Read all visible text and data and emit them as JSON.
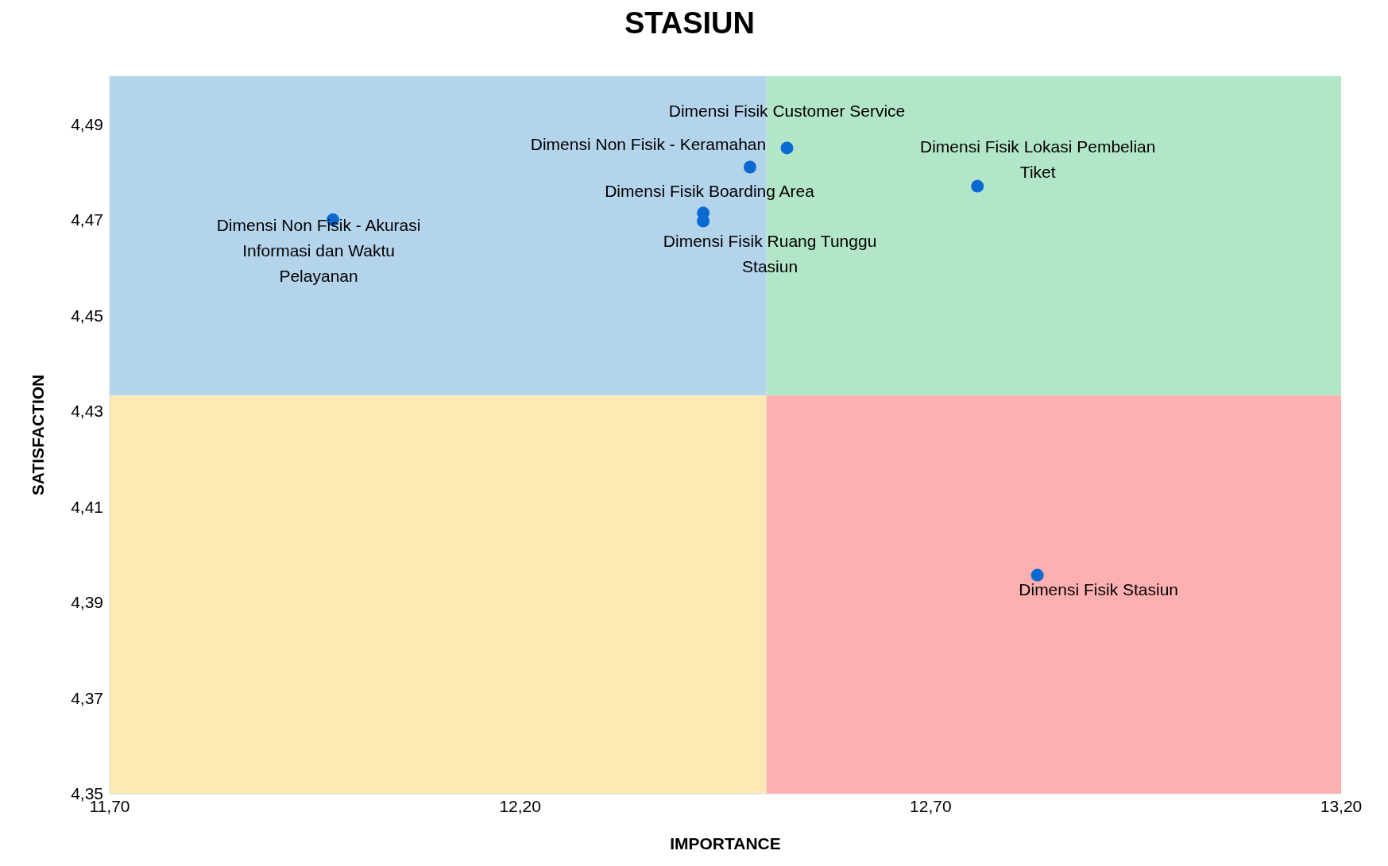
{
  "chart_data": {
    "type": "scatter",
    "title": "STASIUN",
    "xlabel": "IMPORTANCE",
    "ylabel": "SATISFACTION",
    "xlim": [
      11.7,
      13.2
    ],
    "ylim": [
      4.35,
      4.5
    ],
    "xticks": [
      {
        "value": 11.7,
        "label": "11,70"
      },
      {
        "value": 12.2,
        "label": "12,20"
      },
      {
        "value": 12.7,
        "label": "12,70"
      },
      {
        "value": 13.2,
        "label": "13,20"
      }
    ],
    "yticks": [
      {
        "value": 4.35,
        "label": "4,35"
      },
      {
        "value": 4.37,
        "label": "4,37"
      },
      {
        "value": 4.39,
        "label": "4,39"
      },
      {
        "value": 4.41,
        "label": "4,41"
      },
      {
        "value": 4.43,
        "label": "4,43"
      },
      {
        "value": 4.45,
        "label": "4,45"
      },
      {
        "value": 4.47,
        "label": "4,47"
      },
      {
        "value": 4.49,
        "label": "4,49"
      }
    ],
    "grid": false,
    "legend": false,
    "marker": "circle",
    "series": [
      {
        "name": "Dimensi Non Fisik - Akurasi Informasi dan Waktu Pelayanan",
        "color": "#0a6ad1",
        "x": [
          11.972
        ],
        "values": [
          4.47
        ]
      },
      {
        "name": "Dimensi Non Fisik - Keramahan",
        "color": "#0a6ad1",
        "x": [
          12.48
        ],
        "values": [
          4.481
        ]
      },
      {
        "name": "Dimensi Fisik Customer Service",
        "color": "#0a6ad1",
        "x": [
          12.525
        ],
        "values": [
          4.485
        ]
      },
      {
        "name": "Dimensi Fisik Boarding Area",
        "color": "#0a6ad1",
        "x": [
          12.423
        ],
        "values": [
          4.4714
        ]
      },
      {
        "name": "Dimensi Fisik Ruang Tunggu Stasiun",
        "color": "#0a6ad1",
        "x": [
          12.423
        ],
        "values": [
          4.4697
        ]
      },
      {
        "name": "Dimensi Fisik Lokasi Pembelian Tiket",
        "color": "#0a6ad1",
        "x": [
          12.757
        ],
        "values": [
          4.477
        ]
      },
      {
        "name": "Dimensi Fisik Stasiun",
        "color": "#0a6ad1",
        "x": [
          12.83
        ],
        "values": [
          4.3957
        ]
      }
    ]
  }
}
